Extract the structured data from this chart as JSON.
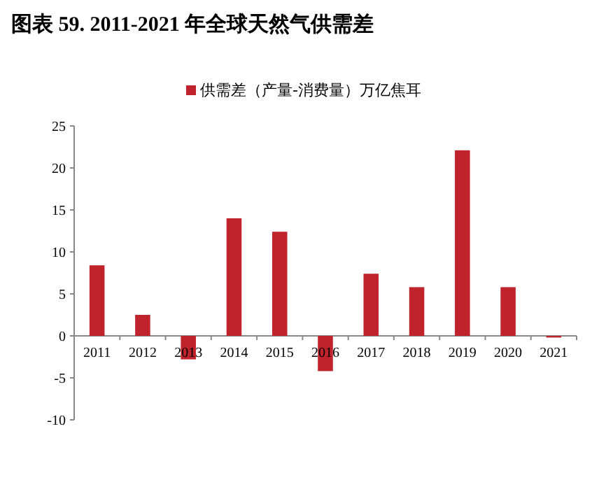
{
  "chart_data": {
    "type": "bar",
    "title": "图表 59. 2011-2021 年全球天然气供需差",
    "categories": [
      "2011",
      "2012",
      "2013",
      "2014",
      "2015",
      "2016",
      "2017",
      "2018",
      "2019",
      "2020",
      "2021"
    ],
    "series": [
      {
        "name": "供需差（产量-消费量）万亿焦耳",
        "color": "#c0232c",
        "values": [
          8.4,
          2.5,
          -2.8,
          14.0,
          12.4,
          -4.2,
          7.4,
          5.8,
          22.1,
          5.8,
          -0.2
        ]
      }
    ],
    "ylim": [
      -10,
      25
    ],
    "yticks": [
      -10,
      -5,
      0,
      5,
      10,
      15,
      20,
      25
    ],
    "legend": "top",
    "grid": false
  }
}
